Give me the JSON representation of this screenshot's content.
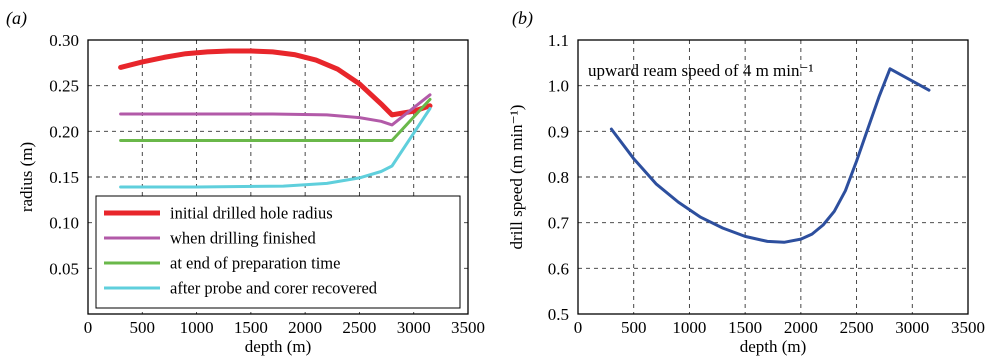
{
  "chart_data": [
    {
      "type": "line",
      "panel_label": "(a)",
      "xlabel": "depth (m)",
      "ylabel": "radius (m)",
      "xlim": [
        0,
        3500
      ],
      "ylim": [
        0,
        0.3
      ],
      "xticks": [
        0,
        500,
        1000,
        1500,
        2000,
        2500,
        3000,
        3500
      ],
      "xtick_labels": [
        "0",
        "500",
        "1000",
        "1500",
        "2000",
        "2500",
        "3000",
        "3500"
      ],
      "yticks": [
        0.05,
        0.1,
        0.15,
        0.2,
        0.25,
        0.3
      ],
      "ytick_labels": [
        "0.05",
        "0.10",
        "0.15",
        "0.20",
        "0.25",
        "0.30"
      ],
      "grid": true,
      "legend_position": "bottom-left",
      "series": [
        {
          "name": "initial drilled hole radius",
          "color": "#e8262b",
          "width": 5,
          "x": [
            300,
            500,
            700,
            900,
            1100,
            1300,
            1500,
            1700,
            1900,
            2100,
            2300,
            2500,
            2700,
            2800,
            3000,
            3150
          ],
          "y": [
            0.27,
            0.276,
            0.281,
            0.285,
            0.287,
            0.288,
            0.288,
            0.287,
            0.284,
            0.278,
            0.268,
            0.252,
            0.23,
            0.218,
            0.222,
            0.228
          ]
        },
        {
          "name": "when drilling finished",
          "color": "#b25aa8",
          "width": 3,
          "x": [
            300,
            700,
            1200,
            1700,
            2200,
            2500,
            2700,
            2800,
            3150
          ],
          "y": [
            0.219,
            0.219,
            0.219,
            0.219,
            0.218,
            0.215,
            0.211,
            0.207,
            0.24
          ]
        },
        {
          "name": "at end of preparation time",
          "color": "#6ab84a",
          "width": 3,
          "x": [
            300,
            1000,
            2000,
            2800,
            3150
          ],
          "y": [
            0.19,
            0.19,
            0.19,
            0.19,
            0.235
          ]
        },
        {
          "name": "after probe and corer recovered",
          "color": "#5fcfdc",
          "width": 3,
          "x": [
            300,
            1000,
            1800,
            2200,
            2500,
            2700,
            2800,
            3150
          ],
          "y": [
            0.139,
            0.139,
            0.14,
            0.143,
            0.149,
            0.156,
            0.162,
            0.225
          ]
        }
      ]
    },
    {
      "type": "line",
      "panel_label": "(b)",
      "xlabel": "depth (m)",
      "ylabel": "drill speed (m min⁻¹)",
      "annotation": "upward ream speed of 4 m min⁻¹",
      "xlim": [
        0,
        3500
      ],
      "ylim": [
        0.5,
        1.1
      ],
      "xticks": [
        0,
        500,
        1000,
        1500,
        2000,
        2500,
        3000,
        3500
      ],
      "xtick_labels": [
        "0",
        "500",
        "1000",
        "1500",
        "2000",
        "2500",
        "3000",
        "3500"
      ],
      "yticks": [
        0.5,
        0.6,
        0.7,
        0.8,
        0.9,
        1.0,
        1.1
      ],
      "ytick_labels": [
        "0.5",
        "0.6",
        "0.7",
        "0.8",
        "0.9",
        "1.0",
        "1.1"
      ],
      "grid": true,
      "series": [
        {
          "color": "#2d4f9e",
          "width": 3,
          "x": [
            300,
            500,
            700,
            900,
            1100,
            1300,
            1500,
            1700,
            1850,
            2000,
            2100,
            2200,
            2300,
            2400,
            2500,
            2600,
            2700,
            2800,
            3150
          ],
          "y": [
            0.905,
            0.84,
            0.785,
            0.745,
            0.712,
            0.688,
            0.67,
            0.659,
            0.657,
            0.664,
            0.675,
            0.695,
            0.725,
            0.77,
            0.835,
            0.905,
            0.975,
            1.037,
            0.99
          ]
        }
      ]
    }
  ]
}
